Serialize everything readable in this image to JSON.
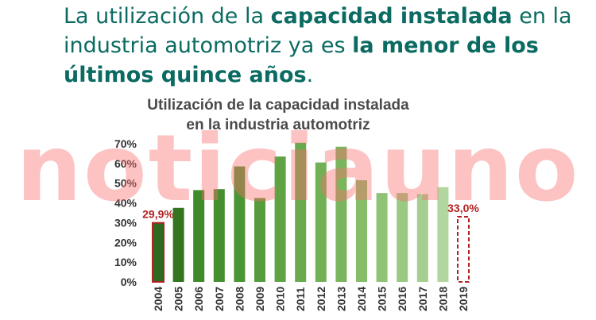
{
  "headline": {
    "part1": "La utilización de la ",
    "part2": "capacidad instalada",
    "part3": " en la industria automotriz ya es ",
    "part4": "la menor de los últimos quince años",
    "part5": "."
  },
  "chart_data": {
    "type": "bar",
    "title_line1": "Utilización de la capacidad instalada",
    "title_line2": "en la industria automotriz",
    "categories": [
      "2004",
      "2005",
      "2006",
      "2007",
      "2008",
      "2009",
      "2010",
      "2011",
      "2012",
      "2013",
      "2014",
      "2015",
      "2016",
      "2017",
      "2018",
      "2019"
    ],
    "values": [
      29.9,
      37.5,
      46.5,
      47,
      58.5,
      42.5,
      63.5,
      70.5,
      60.5,
      68.5,
      51.5,
      45,
      45,
      44.5,
      48,
      33.0
    ],
    "data_labels": {
      "2004": "29,9%",
      "2019": "33,0%"
    },
    "ylim": [
      0,
      70
    ],
    "yticks": [
      "0%",
      "10%",
      "20%",
      "30%",
      "40%",
      "50%",
      "60%",
      "70%"
    ],
    "highlight_color": "#b22222",
    "bar_colors": [
      "#2d6a1f",
      "#33761f",
      "#3f8a2a",
      "#458f2f",
      "#4b9634",
      "#569c3c",
      "#5fa344",
      "#68aa4c",
      "#72b055",
      "#7bb65e",
      "#85bd69",
      "#8fc375",
      "#9ac982",
      "#a5cf90",
      "#b2d69f",
      "#ffffff"
    ]
  },
  "watermark": "noticiauno"
}
